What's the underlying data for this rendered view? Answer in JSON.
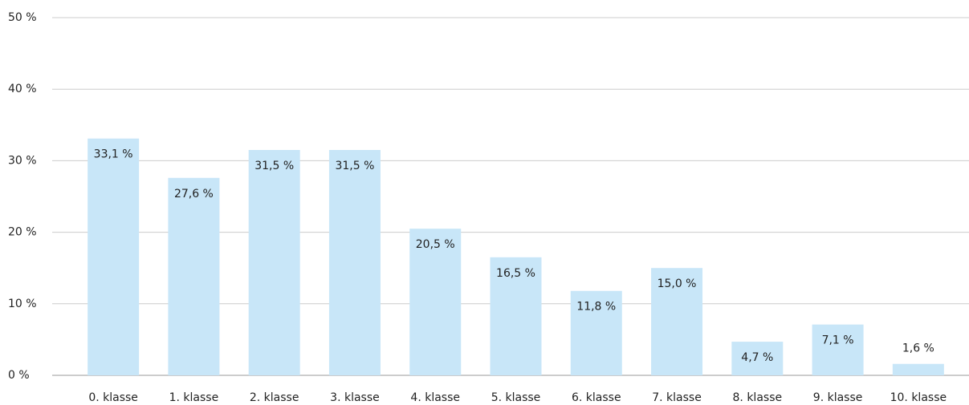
{
  "chart_data": {
    "type": "bar",
    "categories": [
      "0. klasse",
      "1. klasse",
      "2. klasse",
      "3. klasse",
      "4. klasse",
      "5. klasse",
      "6. klasse",
      "7. klasse",
      "8. klasse",
      "9. klasse",
      "10. klasse"
    ],
    "values": [
      33.1,
      27.6,
      31.5,
      31.5,
      20.5,
      16.5,
      11.8,
      15.0,
      4.7,
      7.1,
      1.6
    ],
    "value_labels": [
      "33,1 %",
      "27,6 %",
      "31,5 %",
      "31,5 %",
      "20,5 %",
      "16,5 %",
      "11,8 %",
      "15,0 %",
      "4,7 %",
      "7,1 %",
      "1,6 %"
    ],
    "color": "#c8e6f8",
    "ylim": [
      0,
      50
    ],
    "yticks": [
      {
        "value": 0,
        "label": "0 %"
      },
      {
        "value": 10,
        "label": "10 %"
      },
      {
        "value": 20,
        "label": "20 %"
      },
      {
        "value": 30,
        "label": "30 %"
      },
      {
        "value": 40,
        "label": "40 %"
      },
      {
        "value": 50,
        "label": "50 %"
      }
    ],
    "grid": true
  }
}
